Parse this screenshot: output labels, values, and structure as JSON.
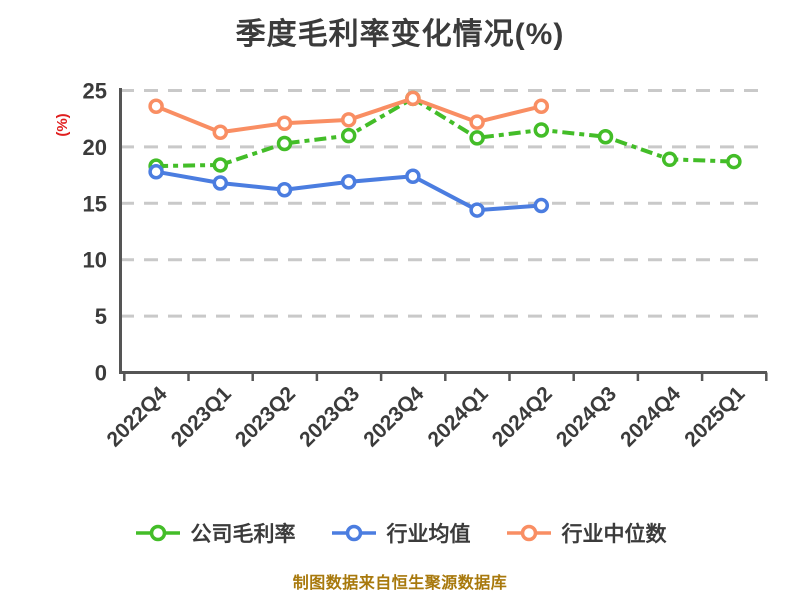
{
  "title": "季度毛利率变化情况(%)",
  "y_axis_label": "(%)",
  "footer": "制图数据来自恒生聚源数据库",
  "colors": {
    "background": "#ffffff",
    "text": "#3b3b3b",
    "axis": "#555555",
    "grid": "#c9c9c9",
    "y_label": "#e01f1f",
    "footer_text": "#a8790d",
    "marker_fill": "#ffffff"
  },
  "chart_data": {
    "type": "line",
    "title": "季度毛利率变化情况(%)",
    "xlabel": "",
    "ylabel": "(%)",
    "categories": [
      "2022Q4",
      "2023Q1",
      "2023Q2",
      "2023Q3",
      "2023Q4",
      "2024Q1",
      "2024Q2",
      "2024Q3",
      "2024Q4",
      "2025Q1"
    ],
    "series": [
      {
        "name": "公司毛利率",
        "color": "#43bd28",
        "line_style": "dashed",
        "values": [
          18.3,
          18.4,
          20.3,
          21.0,
          24.3,
          20.8,
          21.5,
          20.9,
          18.9,
          18.7
        ]
      },
      {
        "name": "行业均值",
        "color": "#4b7de0",
        "line_style": "solid",
        "values": [
          17.8,
          16.8,
          16.2,
          16.9,
          17.4,
          14.4,
          14.8,
          null,
          null,
          null
        ]
      },
      {
        "name": "行业中位数",
        "color": "#f98e63",
        "line_style": "solid",
        "values": [
          23.6,
          21.3,
          22.1,
          22.4,
          24.3,
          22.2,
          23.6,
          null,
          null,
          null
        ]
      }
    ],
    "ylim": [
      0,
      25
    ],
    "yticks": [
      0,
      5,
      10,
      15,
      20,
      25
    ],
    "grid": "horizontal dashed",
    "legend_position": "bottom",
    "marker": "circle-white-fill"
  }
}
